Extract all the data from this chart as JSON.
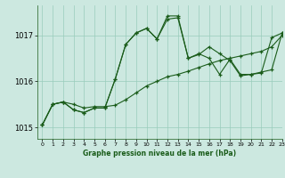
{
  "title": "Graphe pression niveau de la mer (hPa)",
  "bg_color": "#cce8e0",
  "line_color": "#1a5c1a",
  "grid_color": "#99ccbb",
  "xlim": [
    -0.5,
    23
  ],
  "ylim": [
    1014.75,
    1017.65
  ],
  "yticks": [
    1015,
    1016,
    1017
  ],
  "xticks": [
    0,
    1,
    2,
    3,
    4,
    5,
    6,
    7,
    8,
    9,
    10,
    11,
    12,
    13,
    14,
    15,
    16,
    17,
    18,
    19,
    20,
    21,
    22,
    23
  ],
  "line1_x": [
    0,
    1,
    2,
    3,
    4,
    5,
    6,
    7,
    8,
    9,
    10,
    11,
    12,
    13,
    14,
    15,
    16,
    17,
    18,
    19,
    20,
    21,
    22,
    23
  ],
  "line1_y": [
    1015.05,
    1015.5,
    1015.55,
    1015.5,
    1015.42,
    1015.45,
    1015.45,
    1015.48,
    1015.6,
    1015.75,
    1015.9,
    1016.0,
    1016.1,
    1016.15,
    1016.22,
    1016.3,
    1016.38,
    1016.45,
    1016.5,
    1016.55,
    1016.6,
    1016.65,
    1016.75,
    1017.0
  ],
  "line2_x": [
    0,
    1,
    2,
    3,
    4,
    5,
    6,
    7,
    8,
    9,
    10,
    11,
    12,
    13,
    14,
    15,
    16,
    17,
    18,
    19,
    20,
    21,
    22,
    23
  ],
  "line2_y": [
    1015.05,
    1015.5,
    1015.55,
    1015.38,
    1015.32,
    1015.42,
    1015.42,
    1016.05,
    1016.8,
    1017.05,
    1017.15,
    1016.92,
    1017.35,
    1017.38,
    1016.5,
    1016.58,
    1016.75,
    1016.6,
    1016.45,
    1016.12,
    1016.15,
    1016.18,
    1016.95,
    1017.05
  ],
  "line3_x": [
    0,
    1,
    2,
    3,
    4,
    5,
    6,
    7,
    8,
    9,
    10,
    11,
    12,
    13,
    14,
    15,
    16,
    17,
    18,
    19,
    20,
    21,
    22,
    23
  ],
  "line3_y": [
    1015.05,
    1015.5,
    1015.55,
    1015.38,
    1015.32,
    1015.42,
    1015.42,
    1016.05,
    1016.8,
    1017.05,
    1017.15,
    1016.92,
    1017.42,
    1017.42,
    1016.5,
    1016.6,
    1016.5,
    1016.15,
    1016.48,
    1016.15,
    1016.15,
    1016.2,
    1016.25,
    1017.05
  ]
}
